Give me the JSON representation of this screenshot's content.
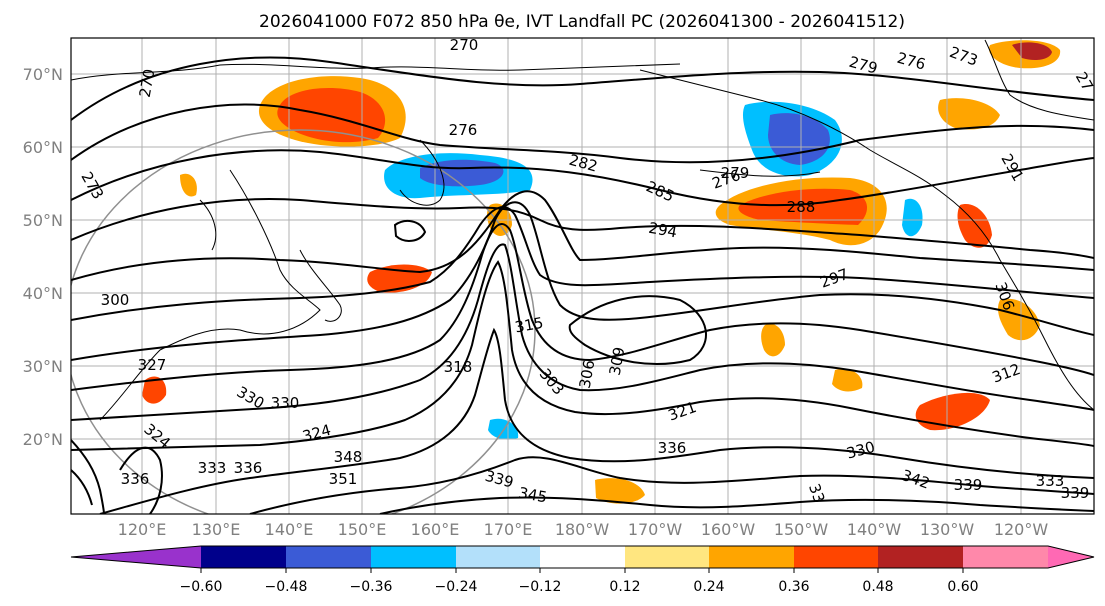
{
  "title": "2026041000 F072 850 hPa θe, IVT Landfall PC (2026041300 - 2026041512)",
  "lat_labels": [
    "70°N",
    "60°N",
    "50°N",
    "40°N",
    "30°N",
    "20°N"
  ],
  "lon_labels": [
    "120°E",
    "130°E",
    "140°E",
    "150°E",
    "160°E",
    "170°E",
    "180°W",
    "170°W",
    "160°W",
    "150°W",
    "140°W",
    "130°W",
    "120°W"
  ],
  "colorbar": {
    "ticks": [
      "−0.60",
      "−0.48",
      "−0.36",
      "−0.24",
      "−0.12",
      "0.12",
      "0.24",
      "0.36",
      "0.48",
      "0.60"
    ],
    "colors": [
      "#9932cc",
      "#00008b",
      "#3b5bd6",
      "#00bfff",
      "#b3e0fa",
      "#ffffff",
      "#ffe680",
      "#ffa500",
      "#ff4500",
      "#b22222",
      "#ff88aa",
      "#ff69b4"
    ]
  },
  "contour_labels": [
    "270",
    "270",
    "273",
    "276",
    "279",
    "276",
    "273",
    "27",
    "276",
    "282",
    "285",
    "279",
    "288",
    "291",
    "294",
    "297",
    "300",
    "303",
    "306",
    "306",
    "309",
    "312",
    "315",
    "318",
    "321",
    "324",
    "324",
    "327",
    "330",
    "330",
    "330",
    "333",
    "336",
    "336",
    "336",
    "339",
    "339",
    "342",
    "345",
    "348",
    "351",
    "33",
    "333",
    "339"
  ]
}
